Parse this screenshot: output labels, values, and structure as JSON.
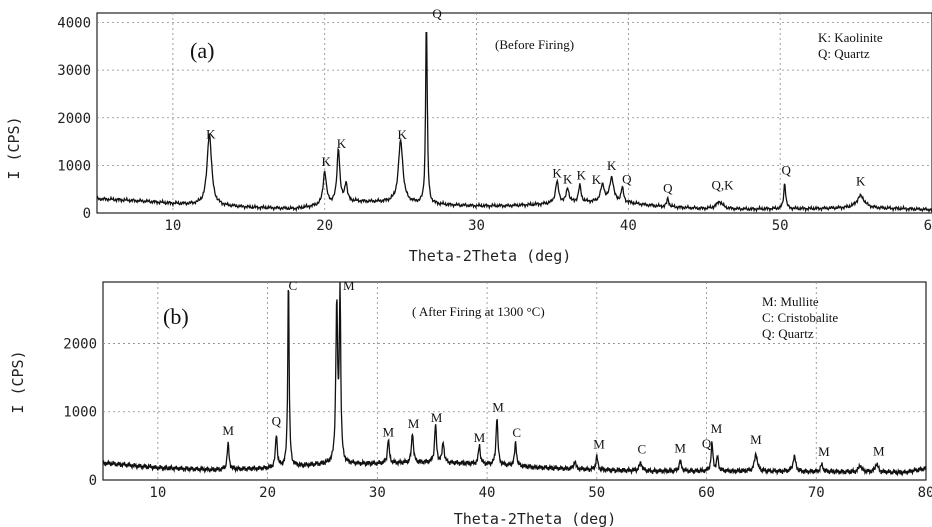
{
  "chart_data": [
    {
      "type": "line",
      "panel_label": "(a)",
      "annotation": "(Before Firing)",
      "xlabel": "Theta-2Theta (deg)",
      "ylabel": "I (CPS)",
      "xlim": [
        5,
        60
      ],
      "ylim": [
        0,
        4200
      ],
      "xticks": [
        10,
        20,
        30,
        40,
        50,
        60
      ],
      "xtick_labels": [
        "10",
        "20",
        "30",
        "40",
        "50",
        "60"
      ],
      "yticks": [
        0,
        1000,
        2000,
        3000,
        4000
      ],
      "ytick_labels": [
        "0",
        "1000",
        "2000",
        "3000",
        "4000"
      ],
      "grid": true,
      "legend_position": "top-right",
      "legend": [
        "K: Kaolinite",
        "Q: Quartz"
      ],
      "baseline": [
        [
          5,
          300
        ],
        [
          8,
          250
        ],
        [
          10,
          200
        ],
        [
          12,
          170
        ],
        [
          15,
          120
        ],
        [
          18,
          90
        ],
        [
          20,
          170
        ],
        [
          22,
          240
        ],
        [
          24,
          230
        ],
        [
          26,
          200
        ],
        [
          28,
          170
        ],
        [
          30,
          150
        ],
        [
          32,
          150
        ],
        [
          34,
          180
        ],
        [
          36,
          220
        ],
        [
          38,
          230
        ],
        [
          40,
          210
        ],
        [
          42,
          140
        ],
        [
          45,
          90
        ],
        [
          48,
          80
        ],
        [
          50,
          90
        ],
        [
          52,
          90
        ],
        [
          55,
          110
        ],
        [
          58,
          90
        ],
        [
          60,
          70
        ]
      ],
      "series": [
        {
          "peaks": [
            {
              "x": 12.4,
              "y": 1500,
              "w": 0.35
            },
            {
              "x": 20.0,
              "y": 700,
              "w": 0.25
            },
            {
              "x": 20.9,
              "y": 1150,
              "w": 0.22
            },
            {
              "x": 21.4,
              "y": 400,
              "w": 0.2
            },
            {
              "x": 25.0,
              "y": 1300,
              "w": 0.35
            },
            {
              "x": 26.7,
              "y": 4000,
              "w": 0.12
            },
            {
              "x": 35.3,
              "y": 450,
              "w": 0.25
            },
            {
              "x": 36.0,
              "y": 300,
              "w": 0.2
            },
            {
              "x": 36.8,
              "y": 350,
              "w": 0.2
            },
            {
              "x": 38.3,
              "y": 350,
              "w": 0.3
            },
            {
              "x": 38.9,
              "y": 520,
              "w": 0.3
            },
            {
              "x": 39.6,
              "y": 300,
              "w": 0.2
            },
            {
              "x": 42.6,
              "y": 180,
              "w": 0.15
            },
            {
              "x": 46.0,
              "y": 150,
              "w": 0.5
            },
            {
              "x": 50.3,
              "y": 550,
              "w": 0.15
            },
            {
              "x": 55.3,
              "y": 250,
              "w": 0.6
            }
          ]
        }
      ],
      "peak_labels": [
        {
          "x": 12.5,
          "y": 1560,
          "text": "K"
        },
        {
          "x": 20.1,
          "y": 990,
          "text": "K"
        },
        {
          "x": 21.1,
          "y": 1370,
          "text": "K"
        },
        {
          "x": 25.1,
          "y": 1550,
          "text": "K"
        },
        {
          "x": 27.4,
          "y": 4100,
          "text": "Q"
        },
        {
          "x": 35.3,
          "y": 750,
          "text": "K"
        },
        {
          "x": 36.0,
          "y": 620,
          "text": "K"
        },
        {
          "x": 36.9,
          "y": 700,
          "text": "K"
        },
        {
          "x": 37.9,
          "y": 610,
          "text": "K"
        },
        {
          "x": 38.9,
          "y": 900,
          "text": "K"
        },
        {
          "x": 39.9,
          "y": 620,
          "text": "Q"
        },
        {
          "x": 42.6,
          "y": 430,
          "text": "Q"
        },
        {
          "x": 46.2,
          "y": 490,
          "text": "Q,K"
        },
        {
          "x": 50.4,
          "y": 810,
          "text": "Q"
        },
        {
          "x": 55.3,
          "y": 580,
          "text": "K"
        }
      ]
    },
    {
      "type": "line",
      "panel_label": "(b)",
      "annotation": "( After Firing at 1300 °C)",
      "xlabel": "Theta-2Theta (deg)",
      "ylabel": "I (CPS)",
      "xlim": [
        5,
        80
      ],
      "ylim": [
        0,
        2900
      ],
      "xticks": [
        10,
        20,
        30,
        40,
        50,
        60,
        70,
        80
      ],
      "xtick_labels": [
        "10",
        "20",
        "30",
        "40",
        "50",
        "60",
        "70",
        "80"
      ],
      "yticks": [
        0,
        1000,
        2000
      ],
      "ytick_labels": [
        "0",
        "1000",
        "2000"
      ],
      "grid": true,
      "legend_position": "top-right",
      "legend": [
        "M: Mullite",
        "C: Cristobalite",
        "Q: Quartz"
      ],
      "baseline": [
        [
          5,
          250
        ],
        [
          10,
          180
        ],
        [
          15,
          150
        ],
        [
          20,
          170
        ],
        [
          25,
          230
        ],
        [
          30,
          240
        ],
        [
          35,
          260
        ],
        [
          40,
          230
        ],
        [
          45,
          180
        ],
        [
          50,
          150
        ],
        [
          55,
          130
        ],
        [
          60,
          130
        ],
        [
          65,
          130
        ],
        [
          70,
          120
        ],
        [
          75,
          120
        ],
        [
          78,
          110
        ],
        [
          80,
          170
        ]
      ],
      "series": [
        {
          "peaks": [
            {
              "x": 16.4,
              "y": 380,
              "w": 0.2
            },
            {
              "x": 20.8,
              "y": 480,
              "w": 0.2
            },
            {
              "x": 21.9,
              "y": 2750,
              "w": 0.15
            },
            {
              "x": 26.3,
              "y": 2300,
              "w": 0.2
            },
            {
              "x": 26.6,
              "y": 2500,
              "w": 0.15
            },
            {
              "x": 31.0,
              "y": 350,
              "w": 0.2
            },
            {
              "x": 33.2,
              "y": 450,
              "w": 0.2
            },
            {
              "x": 35.3,
              "y": 550,
              "w": 0.2
            },
            {
              "x": 36.0,
              "y": 300,
              "w": 0.2
            },
            {
              "x": 39.3,
              "y": 280,
              "w": 0.2
            },
            {
              "x": 40.9,
              "y": 700,
              "w": 0.2
            },
            {
              "x": 42.6,
              "y": 350,
              "w": 0.2
            },
            {
              "x": 48.0,
              "y": 120,
              "w": 0.2
            },
            {
              "x": 50.0,
              "y": 200,
              "w": 0.2
            },
            {
              "x": 54.0,
              "y": 120,
              "w": 0.3
            },
            {
              "x": 57.6,
              "y": 150,
              "w": 0.25
            },
            {
              "x": 60.5,
              "y": 400,
              "w": 0.2
            },
            {
              "x": 61.0,
              "y": 200,
              "w": 0.2
            },
            {
              "x": 64.5,
              "y": 260,
              "w": 0.3
            },
            {
              "x": 68.0,
              "y": 220,
              "w": 0.3
            },
            {
              "x": 70.5,
              "y": 100,
              "w": 0.3
            },
            {
              "x": 74.0,
              "y": 100,
              "w": 0.3
            },
            {
              "x": 75.5,
              "y": 120,
              "w": 0.3
            }
          ]
        }
      ],
      "peak_labels": [
        {
          "x": 16.4,
          "y": 660,
          "text": "M"
        },
        {
          "x": 20.8,
          "y": 800,
          "text": "Q"
        },
        {
          "x": 22.3,
          "y": 2780,
          "text": "C"
        },
        {
          "x": 27.4,
          "y": 2780,
          "text": "M"
        },
        {
          "x": 31.0,
          "y": 640,
          "text": "M"
        },
        {
          "x": 33.3,
          "y": 760,
          "text": "M"
        },
        {
          "x": 35.4,
          "y": 850,
          "text": "M"
        },
        {
          "x": 39.3,
          "y": 560,
          "text": "M"
        },
        {
          "x": 41.0,
          "y": 1000,
          "text": "M"
        },
        {
          "x": 42.7,
          "y": 630,
          "text": "C"
        },
        {
          "x": 50.2,
          "y": 460,
          "text": "M"
        },
        {
          "x": 54.1,
          "y": 390,
          "text": "C"
        },
        {
          "x": 57.6,
          "y": 400,
          "text": "M"
        },
        {
          "x": 60.0,
          "y": 470,
          "text": "Q"
        },
        {
          "x": 60.9,
          "y": 690,
          "text": "M"
        },
        {
          "x": 64.5,
          "y": 530,
          "text": "M"
        },
        {
          "x": 70.7,
          "y": 350,
          "text": "M"
        },
        {
          "x": 75.7,
          "y": 360,
          "text": "M"
        }
      ]
    }
  ]
}
